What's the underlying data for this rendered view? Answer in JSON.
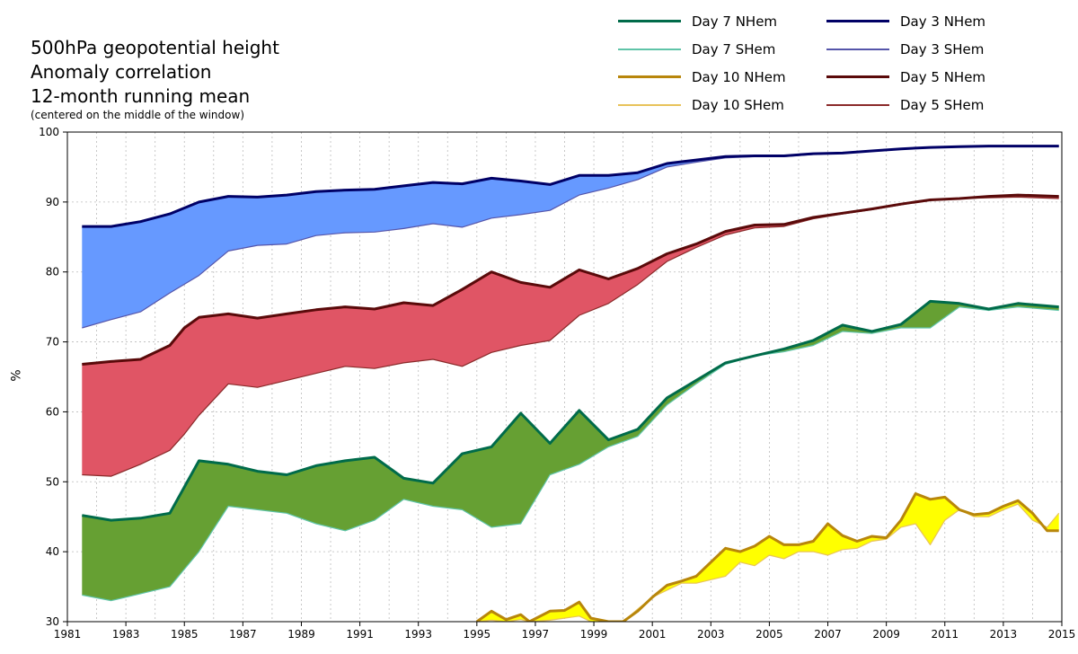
{
  "chart_data": {
    "type": "area",
    "title": "500hPa geopotential height",
    "subtitle_lines": [
      "Anomaly correlation",
      "12-month running mean"
    ],
    "note": "(centered on the middle of the window)",
    "xlabel": "",
    "ylabel": "%",
    "xlim": [
      1981,
      2015
    ],
    "ylim": [
      30,
      100
    ],
    "grid": true,
    "x_ticks": [
      "1981",
      "1983",
      "1985",
      "1987",
      "1989",
      "1991",
      "1993",
      "1995",
      "1997",
      "1999",
      "2001",
      "2003",
      "2005",
      "2007",
      "2009",
      "2011",
      "2013",
      "2015"
    ],
    "y_ticks": [
      "30",
      "40",
      "50",
      "60",
      "70",
      "80",
      "90",
      "100"
    ],
    "legend_position": "top-right",
    "series": [
      {
        "name": "Day 3 NHem",
        "color": "#000066",
        "width": 3,
        "x": [
          1981.5,
          1982.5,
          1983.5,
          1984.5,
          1985.5,
          1986.5,
          1987.5,
          1988.5,
          1989.5,
          1990.5,
          1991.5,
          1992.5,
          1993.5,
          1994.5,
          1995.5,
          1996.5,
          1997.5,
          1998.5,
          1999.5,
          2000.5,
          2001.5,
          2002.5,
          2003.5,
          2004.5,
          2005.5,
          2006.5,
          2007.5,
          2008.5,
          2009.5,
          2010.5,
          2011.5,
          2012.5,
          2013.5,
          2014.9
        ],
        "values": [
          86.5,
          86.5,
          87.2,
          88.3,
          90.0,
          90.8,
          90.7,
          91.0,
          91.5,
          91.7,
          91.8,
          92.3,
          92.8,
          92.6,
          93.4,
          93.0,
          92.5,
          93.8,
          93.8,
          94.2,
          95.5,
          96.0,
          96.5,
          96.6,
          96.6,
          96.9,
          97.0,
          97.3,
          97.6,
          97.8,
          97.9,
          98.0,
          98.0,
          98.0
        ]
      },
      {
        "name": "Day 3 SHem",
        "color": "#5555aa",
        "width": 1.2,
        "x": [
          1981.5,
          1982.5,
          1983.5,
          1984.5,
          1985.5,
          1986.5,
          1987.5,
          1988.5,
          1989.5,
          1990.5,
          1991.5,
          1992.5,
          1993.5,
          1994.5,
          1995.5,
          1996.5,
          1997.5,
          1998.5,
          1999.5,
          2000.5,
          2001.5,
          2002.5,
          2003.5,
          2004.5,
          2005.5,
          2006.5,
          2007.5,
          2008.5,
          2009.5,
          2010.5,
          2011.5,
          2012.5,
          2013.5,
          2014.9
        ],
        "values": [
          72.0,
          73.2,
          74.3,
          77.0,
          79.5,
          83.0,
          83.8,
          84.0,
          85.2,
          85.6,
          85.7,
          86.2,
          86.9,
          86.4,
          87.7,
          88.2,
          88.8,
          91.0,
          92.0,
          93.2,
          95.0,
          95.7,
          96.3,
          96.5,
          96.5,
          96.8,
          97.0,
          97.3,
          97.6,
          97.8,
          97.9,
          98.0,
          98.0,
          98.0
        ]
      },
      {
        "name": "Day 5 NHem",
        "color": "#5a0a0a",
        "width": 3,
        "x": [
          1981.5,
          1982.5,
          1983.5,
          1984.5,
          1985.0,
          1985.5,
          1986.5,
          1987.5,
          1988.5,
          1989.5,
          1990.5,
          1991.5,
          1992.5,
          1993.5,
          1994.5,
          1995.5,
          1996.5,
          1997.5,
          1998.5,
          1999.5,
          2000.5,
          2001.5,
          2002.5,
          2003.5,
          2004.5,
          2005.5,
          2006.5,
          2007.5,
          2008.5,
          2009.5,
          2010.5,
          2011.5,
          2012.5,
          2013.5,
          2014.9
        ],
        "values": [
          66.8,
          67.2,
          67.5,
          69.5,
          72.0,
          73.5,
          74.0,
          73.4,
          74.0,
          74.6,
          75.0,
          74.7,
          75.6,
          75.2,
          77.5,
          80.0,
          78.5,
          77.8,
          80.3,
          79.0,
          80.5,
          82.6,
          84.0,
          85.8,
          86.7,
          86.8,
          87.8,
          88.4,
          89.0,
          89.7,
          90.3,
          90.5,
          90.8,
          91.0,
          90.8
        ]
      },
      {
        "name": "Day 5 SHem",
        "color": "#8a2a2a",
        "width": 1.2,
        "x": [
          1981.5,
          1982.5,
          1983.5,
          1984.5,
          1985.0,
          1985.5,
          1986.5,
          1987.5,
          1988.5,
          1989.5,
          1990.5,
          1991.5,
          1992.5,
          1993.5,
          1994.5,
          1995.5,
          1996.5,
          1997.5,
          1998.5,
          1999.5,
          2000.5,
          2001.5,
          2002.5,
          2003.5,
          2004.5,
          2005.5,
          2006.5,
          2007.5,
          2008.5,
          2009.5,
          2010.5,
          2011.5,
          2012.5,
          2013.5,
          2014.9
        ],
        "values": [
          51.0,
          50.8,
          52.5,
          54.5,
          56.8,
          59.5,
          64.0,
          63.5,
          64.5,
          65.5,
          66.5,
          66.2,
          67.0,
          67.5,
          66.5,
          68.5,
          69.5,
          70.2,
          73.8,
          75.5,
          78.2,
          81.5,
          83.5,
          85.3,
          86.3,
          86.5,
          87.6,
          88.3,
          88.9,
          89.6,
          90.3,
          90.5,
          90.6,
          90.7,
          90.5
        ]
      },
      {
        "name": "Day 7 NHem",
        "color": "#006b4a",
        "width": 3,
        "x": [
          1981.5,
          1982.5,
          1983.5,
          1984.5,
          1985.5,
          1986.5,
          1987.5,
          1988.5,
          1989.5,
          1990.5,
          1991.5,
          1992.5,
          1993.5,
          1994.5,
          1995.5,
          1996.5,
          1997.5,
          1998.5,
          1999.5,
          2000.5,
          2001.5,
          2002.5,
          2003.5,
          2004.5,
          2005.5,
          2006.5,
          2007.5,
          2008.5,
          2009.5,
          2010.5,
          2011.5,
          2012.5,
          2013.5,
          2014.9
        ],
        "values": [
          45.2,
          44.5,
          44.8,
          45.5,
          53.0,
          52.5,
          51.5,
          51.0,
          52.3,
          53.0,
          53.5,
          50.5,
          49.8,
          54.0,
          55.0,
          59.8,
          55.5,
          60.2,
          56.0,
          57.5,
          62.0,
          64.5,
          67.0,
          68.0,
          69.0,
          70.2,
          72.4,
          71.5,
          72.5,
          75.8,
          75.5,
          74.7,
          75.5,
          75.0
        ]
      },
      {
        "name": "Day 7 SHem",
        "color": "#5fc4a8",
        "width": 1.2,
        "x": [
          1981.5,
          1982.5,
          1983.5,
          1984.5,
          1985.5,
          1986.5,
          1987.5,
          1988.5,
          1989.5,
          1990.5,
          1991.5,
          1992.5,
          1993.5,
          1994.5,
          1995.5,
          1996.5,
          1997.5,
          1998.5,
          1999.5,
          2000.5,
          2001.5,
          2002.5,
          2003.5,
          2004.5,
          2005.5,
          2006.5,
          2007.5,
          2008.5,
          2009.5,
          2010.5,
          2011.5,
          2012.5,
          2013.5,
          2014.9
        ],
        "values": [
          33.8,
          33.0,
          34.0,
          35.0,
          40.0,
          46.5,
          46.0,
          45.5,
          44.0,
          43.0,
          44.5,
          47.5,
          46.5,
          46.0,
          43.5,
          44.0,
          51.0,
          52.5,
          55.0,
          56.5,
          61.0,
          64.0,
          66.8,
          68.0,
          68.6,
          69.5,
          71.5,
          71.2,
          72.0,
          72.0,
          75.0,
          74.5,
          75.0,
          74.5
        ]
      },
      {
        "name": "Day 10 NHem",
        "color": "#b8860b",
        "width": 3,
        "x": [
          1995.0,
          1995.5,
          1996.0,
          1996.5,
          1996.8,
          1997.5,
          1998.0,
          1998.5,
          1998.9,
          1999.5,
          2000.0,
          2000.5,
          2001.0,
          2001.5,
          2002.0,
          2002.5,
          2003.0,
          2003.5,
          2004.0,
          2004.5,
          2005.0,
          2005.5,
          2006.0,
          2006.5,
          2007.0,
          2007.5,
          2008.0,
          2008.5,
          2009.0,
          2009.5,
          2010.0,
          2010.5,
          2011.0,
          2011.5,
          2012.0,
          2012.5,
          2013.0,
          2013.5,
          2014.0,
          2014.5,
          2014.9
        ],
        "values": [
          30.0,
          31.5,
          30.3,
          31.0,
          30.0,
          31.5,
          31.6,
          32.8,
          30.5,
          30.0,
          30.0,
          31.5,
          33.5,
          35.2,
          35.8,
          36.5,
          38.5,
          40.5,
          40.0,
          40.8,
          42.2,
          41.0,
          41.0,
          41.5,
          44.0,
          42.3,
          41.5,
          42.2,
          42.0,
          44.5,
          48.3,
          47.5,
          47.8,
          46.0,
          45.3,
          45.5,
          46.5,
          47.3,
          45.5,
          43.0,
          43.0
        ]
      },
      {
        "name": "Day 10 SHem",
        "color": "#e8c35a",
        "width": 1.2,
        "x": [
          1995.0,
          1995.5,
          1996.0,
          1996.5,
          1996.8,
          1997.5,
          1998.0,
          1998.5,
          1998.9,
          1999.5,
          2000.0,
          2000.5,
          2001.0,
          2001.5,
          2002.0,
          2002.5,
          2003.0,
          2003.5,
          2004.0,
          2004.5,
          2005.0,
          2005.5,
          2006.0,
          2006.5,
          2007.0,
          2007.5,
          2008.0,
          2008.5,
          2009.0,
          2009.5,
          2010.0,
          2010.5,
          2011.0,
          2011.5,
          2012.0,
          2012.5,
          2013.0,
          2013.5,
          2014.0,
          2014.5,
          2014.9
        ],
        "values": [
          30.0,
          30.2,
          30.0,
          30.3,
          30.0,
          30.2,
          30.5,
          30.8,
          30.0,
          30.0,
          30.0,
          31.8,
          33.5,
          34.5,
          35.5,
          35.5,
          36.0,
          36.5,
          38.5,
          38.0,
          39.5,
          39.0,
          40.0,
          40.0,
          39.5,
          40.3,
          40.5,
          41.5,
          41.8,
          43.5,
          44.0,
          41.0,
          44.5,
          46.0,
          45.0,
          45.0,
          46.0,
          46.8,
          44.5,
          43.5,
          45.5
        ]
      }
    ],
    "fills": [
      {
        "between": [
          "Day 3 NHem",
          "Day 3 SHem"
        ],
        "color": "#6699ff"
      },
      {
        "between": [
          "Day 5 NHem",
          "Day 5 SHem"
        ],
        "color": "#e05565"
      },
      {
        "between": [
          "Day 7 NHem",
          "Day 7 SHem"
        ],
        "color": "#66a033"
      },
      {
        "between": [
          "Day 10 NHem",
          "Day 10 SHem"
        ],
        "color": "#ffff00"
      }
    ]
  }
}
